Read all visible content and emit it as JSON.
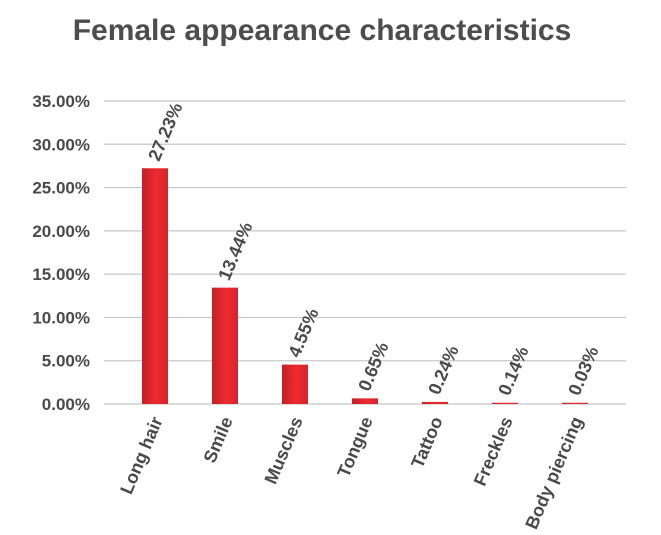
{
  "chart_data": {
    "type": "bar",
    "title": "Female appearance characteristics",
    "categories": [
      "Long hair",
      "Smile",
      "Muscles",
      "Tongue",
      "Tattoo",
      "Freckles",
      "Body piercing"
    ],
    "values": [
      27.23,
      13.44,
      4.55,
      0.65,
      0.24,
      0.14,
      0.03
    ],
    "data_labels": [
      "27.23%",
      "13.44%",
      "4.55%",
      "0.65%",
      "0.24%",
      "0.14%",
      "0.03%"
    ],
    "y_ticks": [
      0,
      5,
      10,
      15,
      20,
      25,
      30,
      35
    ],
    "y_tick_labels": [
      "0.00%",
      "5.00%",
      "10.00%",
      "15.00%",
      "20.00%",
      "25.00%",
      "30.00%",
      "35.00%"
    ],
    "ylim": [
      0,
      35
    ],
    "xlabel": "",
    "ylabel": "",
    "grid": true,
    "legend": "none",
    "colors": {
      "bar_dark": "#c0202a",
      "bar_light": "#ee2a30",
      "text": "#4a4a4a",
      "grid": "#c8c8c8"
    }
  }
}
